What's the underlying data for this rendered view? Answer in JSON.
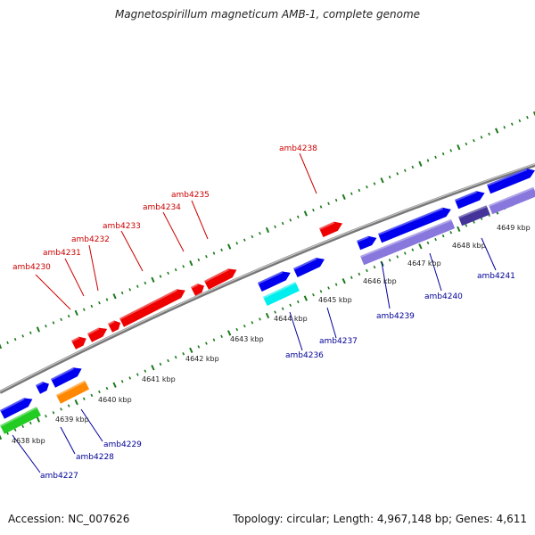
{
  "title": "Magnetospirillum magneticum AMB-1, complete genome",
  "footer": {
    "accession": "Accession: NC_007626",
    "topology": "Topology: circular; Length: 4,967,148 bp; Genes: 4,611"
  },
  "colors": {
    "forward_label": "#cc0000",
    "reverse_label": "#000099",
    "tick": "#1a7a1a",
    "backbone": "#8c8c8c",
    "red": "#ee0000",
    "blue": "#0000ee",
    "cyan": "#00eeee",
    "orange": "#ff8800",
    "green": "#22cc22",
    "lavender": "#8877dd",
    "dark_lavender": "#443399"
  },
  "scale_labels": [
    "4638 kbp",
    "4639 kbp",
    "4640 kbp",
    "4641 kbp",
    "4642 kbp",
    "4643 kbp",
    "4644 kbp",
    "4645 kbp",
    "4646 kbp",
    "4647 kbp",
    "4648 kbp",
    "4649 kbp"
  ],
  "forward_gene_labels": [
    "amb4230",
    "amb4231",
    "amb4232",
    "amb4233",
    "amb4234",
    "amb4235",
    "amb4238"
  ],
  "reverse_gene_labels": [
    "amb4227",
    "amb4228",
    "amb4229",
    "amb4236",
    "amb4237",
    "amb4239",
    "amb4240",
    "amb4241"
  ]
}
